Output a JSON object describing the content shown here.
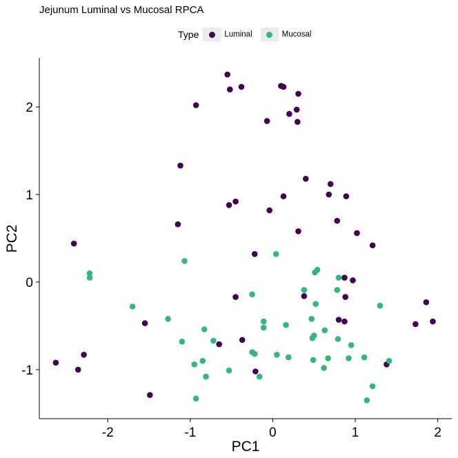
{
  "chart_data": {
    "type": "scatter",
    "title": "Jejunum Luminal vs Mucosal RPCA",
    "xlabel": "PC1",
    "ylabel": "PC2",
    "legend": {
      "title": "Type",
      "position": "top"
    },
    "xlim": [
      -2.83,
      2.17
    ],
    "ylim": [
      -1.56,
      2.56
    ],
    "xticks": [
      -2,
      -1,
      0,
      1,
      2
    ],
    "yticks": [
      -1,
      0,
      1,
      2
    ],
    "grid": false,
    "series": [
      {
        "name": "Luminal",
        "color": "#440154",
        "points": [
          [
            -0.55,
            2.37
          ],
          [
            -0.52,
            2.2
          ],
          [
            -0.38,
            2.23
          ],
          [
            0.1,
            2.24
          ],
          [
            0.13,
            2.23
          ],
          [
            0.31,
            2.15
          ],
          [
            -0.93,
            2.02
          ],
          [
            0.29,
            1.97
          ],
          [
            0.2,
            1.92
          ],
          [
            -0.07,
            1.84
          ],
          [
            0.3,
            1.83
          ],
          [
            -1.12,
            1.33
          ],
          [
            0.4,
            1.18
          ],
          [
            0.7,
            1.12
          ],
          [
            0.68,
            1.0
          ],
          [
            0.13,
            0.98
          ],
          [
            0.89,
            0.98
          ],
          [
            -0.45,
            0.92
          ],
          [
            -0.53,
            0.88
          ],
          [
            -0.04,
            0.82
          ],
          [
            0.78,
            0.7
          ],
          [
            -1.15,
            0.66
          ],
          [
            1.02,
            0.56
          ],
          [
            0.31,
            0.58
          ],
          [
            -2.41,
            0.44
          ],
          [
            1.21,
            0.42
          ],
          [
            -0.22,
            0.32
          ],
          [
            0.87,
            0.05
          ],
          [
            0.97,
            0.02
          ],
          [
            -0.45,
            -0.17
          ],
          [
            0.38,
            -0.16
          ],
          [
            0.88,
            -0.17
          ],
          [
            1.86,
            -0.23
          ],
          [
            0.8,
            -0.43
          ],
          [
            0.87,
            -0.45
          ],
          [
            1.94,
            -0.45
          ],
          [
            -1.55,
            -0.47
          ],
          [
            1.73,
            -0.48
          ],
          [
            -0.37,
            -0.66
          ],
          [
            -0.65,
            -0.71
          ],
          [
            -2.63,
            -0.92
          ],
          [
            -2.29,
            -0.83
          ],
          [
            -2.36,
            -1.0
          ],
          [
            1.38,
            -0.94
          ],
          [
            -0.21,
            -1.02
          ],
          [
            -1.49,
            -1.29
          ]
        ]
      },
      {
        "name": "Mucosal",
        "color": "#35b779",
        "points": [
          [
            -2.22,
            0.1
          ],
          [
            -2.22,
            0.05
          ],
          [
            -1.07,
            0.24
          ],
          [
            0.04,
            0.32
          ],
          [
            0.54,
            0.14
          ],
          [
            0.51,
            0.11
          ],
          [
            0.8,
            0.05
          ],
          [
            0.38,
            -0.09
          ],
          [
            0.78,
            -0.09
          ],
          [
            -0.25,
            -0.14
          ],
          [
            0.52,
            -0.25
          ],
          [
            -1.7,
            -0.28
          ],
          [
            1.3,
            -0.27
          ],
          [
            -1.27,
            -0.42
          ],
          [
            0.47,
            -0.42
          ],
          [
            -0.11,
            -0.45
          ],
          [
            -0.11,
            -0.52
          ],
          [
            0.16,
            -0.49
          ],
          [
            -0.83,
            -0.54
          ],
          [
            0.63,
            -0.55
          ],
          [
            0.5,
            -0.61
          ],
          [
            0.48,
            -0.64
          ],
          [
            0.79,
            -0.65
          ],
          [
            -0.72,
            -0.67
          ],
          [
            -1.1,
            -0.68
          ],
          [
            -0.85,
            -0.9
          ],
          [
            0.95,
            -0.72
          ],
          [
            -0.25,
            -0.8
          ],
          [
            -0.22,
            -0.82
          ],
          [
            0.05,
            -0.83
          ],
          [
            0.19,
            -0.86
          ],
          [
            0.67,
            -0.87
          ],
          [
            0.92,
            -0.87
          ],
          [
            1.11,
            -0.86
          ],
          [
            1.41,
            -0.9
          ],
          [
            0.49,
            -0.89
          ],
          [
            -0.95,
            -0.94
          ],
          [
            -0.53,
            -1.01
          ],
          [
            0.62,
            -0.98
          ],
          [
            -0.81,
            -1.08
          ],
          [
            -0.16,
            -1.08
          ],
          [
            1.21,
            -1.19
          ],
          [
            -0.93,
            -1.33
          ],
          [
            1.14,
            -1.35
          ]
        ]
      }
    ]
  }
}
